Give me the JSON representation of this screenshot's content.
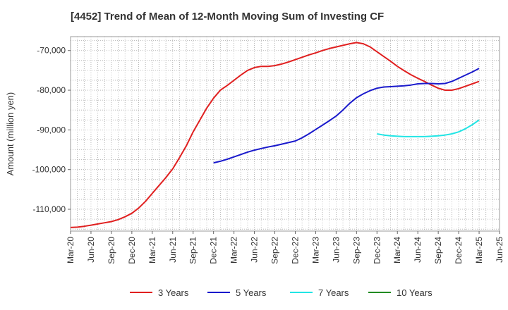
{
  "chart_data": {
    "type": "line",
    "title": "[4452]  Trend of Mean of 12-Month Moving Sum of Investing CF",
    "xlabel": "",
    "ylabel": "Amount (million yen)",
    "ylim": [
      -115500,
      -66500
    ],
    "yticks": [
      -110000,
      -100000,
      -90000,
      -80000,
      -70000
    ],
    "ytick_labels": [
      "-110,000",
      "-100,000",
      "-90,000",
      "-80,000",
      "-70,000"
    ],
    "x_tick_labels": [
      "Mar-20",
      "Jun-20",
      "Sep-20",
      "Dec-20",
      "Mar-21",
      "Jun-21",
      "Sep-21",
      "Dec-21",
      "Mar-22",
      "Jun-22",
      "Sep-22",
      "Dec-22",
      "Mar-23",
      "Jun-23",
      "Sep-23",
      "Dec-23",
      "Mar-24",
      "Jun-24",
      "Sep-24",
      "Dec-24",
      "Mar-25",
      "Jun-25"
    ],
    "grid": true,
    "legend_position": "bottom",
    "series": [
      {
        "name": "3 Years",
        "color": "#e02020",
        "points": [
          [
            "Mar-20",
            -114600
          ],
          [
            "Apr-20",
            -114500
          ],
          [
            "May-20",
            -114300
          ],
          [
            "Jun-20",
            -114000
          ],
          [
            "Jul-20",
            -113700
          ],
          [
            "Aug-20",
            -113400
          ],
          [
            "Sep-20",
            -113100
          ],
          [
            "Oct-20",
            -112600
          ],
          [
            "Nov-20",
            -111900
          ],
          [
            "Dec-20",
            -111000
          ],
          [
            "Jan-21",
            -109700
          ],
          [
            "Feb-21",
            -108000
          ],
          [
            "Mar-21",
            -106000
          ],
          [
            "Apr-21",
            -104000
          ],
          [
            "May-21",
            -102000
          ],
          [
            "Jun-21",
            -99800
          ],
          [
            "Jul-21",
            -97000
          ],
          [
            "Aug-21",
            -94000
          ],
          [
            "Sep-21",
            -90500
          ],
          [
            "Oct-21",
            -87500
          ],
          [
            "Nov-21",
            -84500
          ],
          [
            "Dec-21",
            -82000
          ],
          [
            "Jan-22",
            -80000
          ],
          [
            "Feb-22",
            -78800
          ],
          [
            "Mar-22",
            -77500
          ],
          [
            "Apr-22",
            -76200
          ],
          [
            "May-22",
            -75000
          ],
          [
            "Jun-22",
            -74300
          ],
          [
            "Jul-22",
            -74000
          ],
          [
            "Aug-22",
            -74000
          ],
          [
            "Sep-22",
            -73800
          ],
          [
            "Oct-22",
            -73400
          ],
          [
            "Nov-22",
            -72900
          ],
          [
            "Dec-22",
            -72300
          ],
          [
            "Jan-23",
            -71700
          ],
          [
            "Feb-23",
            -71100
          ],
          [
            "Mar-23",
            -70600
          ],
          [
            "Apr-23",
            -70000
          ],
          [
            "May-23",
            -69500
          ],
          [
            "Jun-23",
            -69100
          ],
          [
            "Jul-23",
            -68700
          ],
          [
            "Aug-23",
            -68300
          ],
          [
            "Sep-23",
            -68000
          ],
          [
            "Oct-23",
            -68300
          ],
          [
            "Nov-23",
            -69100
          ],
          [
            "Dec-23",
            -70300
          ],
          [
            "Jan-24",
            -71500
          ],
          [
            "Feb-24",
            -72700
          ],
          [
            "Mar-24",
            -74000
          ],
          [
            "Apr-24",
            -75100
          ],
          [
            "May-24",
            -76100
          ],
          [
            "Jun-24",
            -77000
          ],
          [
            "Jul-24",
            -77800
          ],
          [
            "Aug-24",
            -78700
          ],
          [
            "Sep-24",
            -79500
          ],
          [
            "Oct-24",
            -80000
          ],
          [
            "Nov-24",
            -80000
          ],
          [
            "Dec-24",
            -79600
          ],
          [
            "Jan-25",
            -79000
          ],
          [
            "Feb-25",
            -78400
          ],
          [
            "Mar-25",
            -77800
          ]
        ]
      },
      {
        "name": "5 Years",
        "color": "#1a1acc",
        "points": [
          [
            "Dec-21",
            -98300
          ],
          [
            "Jan-22",
            -97900
          ],
          [
            "Feb-22",
            -97400
          ],
          [
            "Mar-22",
            -96800
          ],
          [
            "Apr-22",
            -96200
          ],
          [
            "May-22",
            -95600
          ],
          [
            "Jun-22",
            -95100
          ],
          [
            "Jul-22",
            -94700
          ],
          [
            "Aug-22",
            -94300
          ],
          [
            "Sep-22",
            -94000
          ],
          [
            "Oct-22",
            -93600
          ],
          [
            "Nov-22",
            -93200
          ],
          [
            "Dec-22",
            -92800
          ],
          [
            "Jan-23",
            -92000
          ],
          [
            "Feb-23",
            -91000
          ],
          [
            "Mar-23",
            -89900
          ],
          [
            "Apr-23",
            -88800
          ],
          [
            "May-23",
            -87700
          ],
          [
            "Jun-23",
            -86500
          ],
          [
            "Jul-23",
            -85000
          ],
          [
            "Aug-23",
            -83300
          ],
          [
            "Sep-23",
            -81900
          ],
          [
            "Oct-23",
            -80900
          ],
          [
            "Nov-23",
            -80100
          ],
          [
            "Dec-23",
            -79500
          ],
          [
            "Jan-24",
            -79200
          ],
          [
            "Feb-24",
            -79100
          ],
          [
            "Mar-24",
            -79000
          ],
          [
            "Apr-24",
            -78900
          ],
          [
            "May-24",
            -78700
          ],
          [
            "Jun-24",
            -78400
          ],
          [
            "Jul-24",
            -78300
          ],
          [
            "Aug-24",
            -78300
          ],
          [
            "Sep-24",
            -78400
          ],
          [
            "Oct-24",
            -78300
          ],
          [
            "Nov-24",
            -77800
          ],
          [
            "Dec-24",
            -77000
          ],
          [
            "Jan-25",
            -76200
          ],
          [
            "Feb-25",
            -75400
          ],
          [
            "Mar-25",
            -74500
          ]
        ]
      },
      {
        "name": "7 Years",
        "color": "#22e5e5",
        "points": [
          [
            "Dec-23",
            -91000
          ],
          [
            "Jan-24",
            -91300
          ],
          [
            "Feb-24",
            -91500
          ],
          [
            "Mar-24",
            -91600
          ],
          [
            "Apr-24",
            -91700
          ],
          [
            "May-24",
            -91700
          ],
          [
            "Jun-24",
            -91700
          ],
          [
            "Jul-24",
            -91700
          ],
          [
            "Aug-24",
            -91600
          ],
          [
            "Sep-24",
            -91500
          ],
          [
            "Oct-24",
            -91300
          ],
          [
            "Nov-24",
            -91000
          ],
          [
            "Dec-24",
            -90500
          ],
          [
            "Jan-25",
            -89700
          ],
          [
            "Feb-25",
            -88700
          ],
          [
            "Mar-25",
            -87500
          ]
        ]
      },
      {
        "name": "10 Years",
        "color": "#228b22",
        "points": []
      }
    ]
  }
}
